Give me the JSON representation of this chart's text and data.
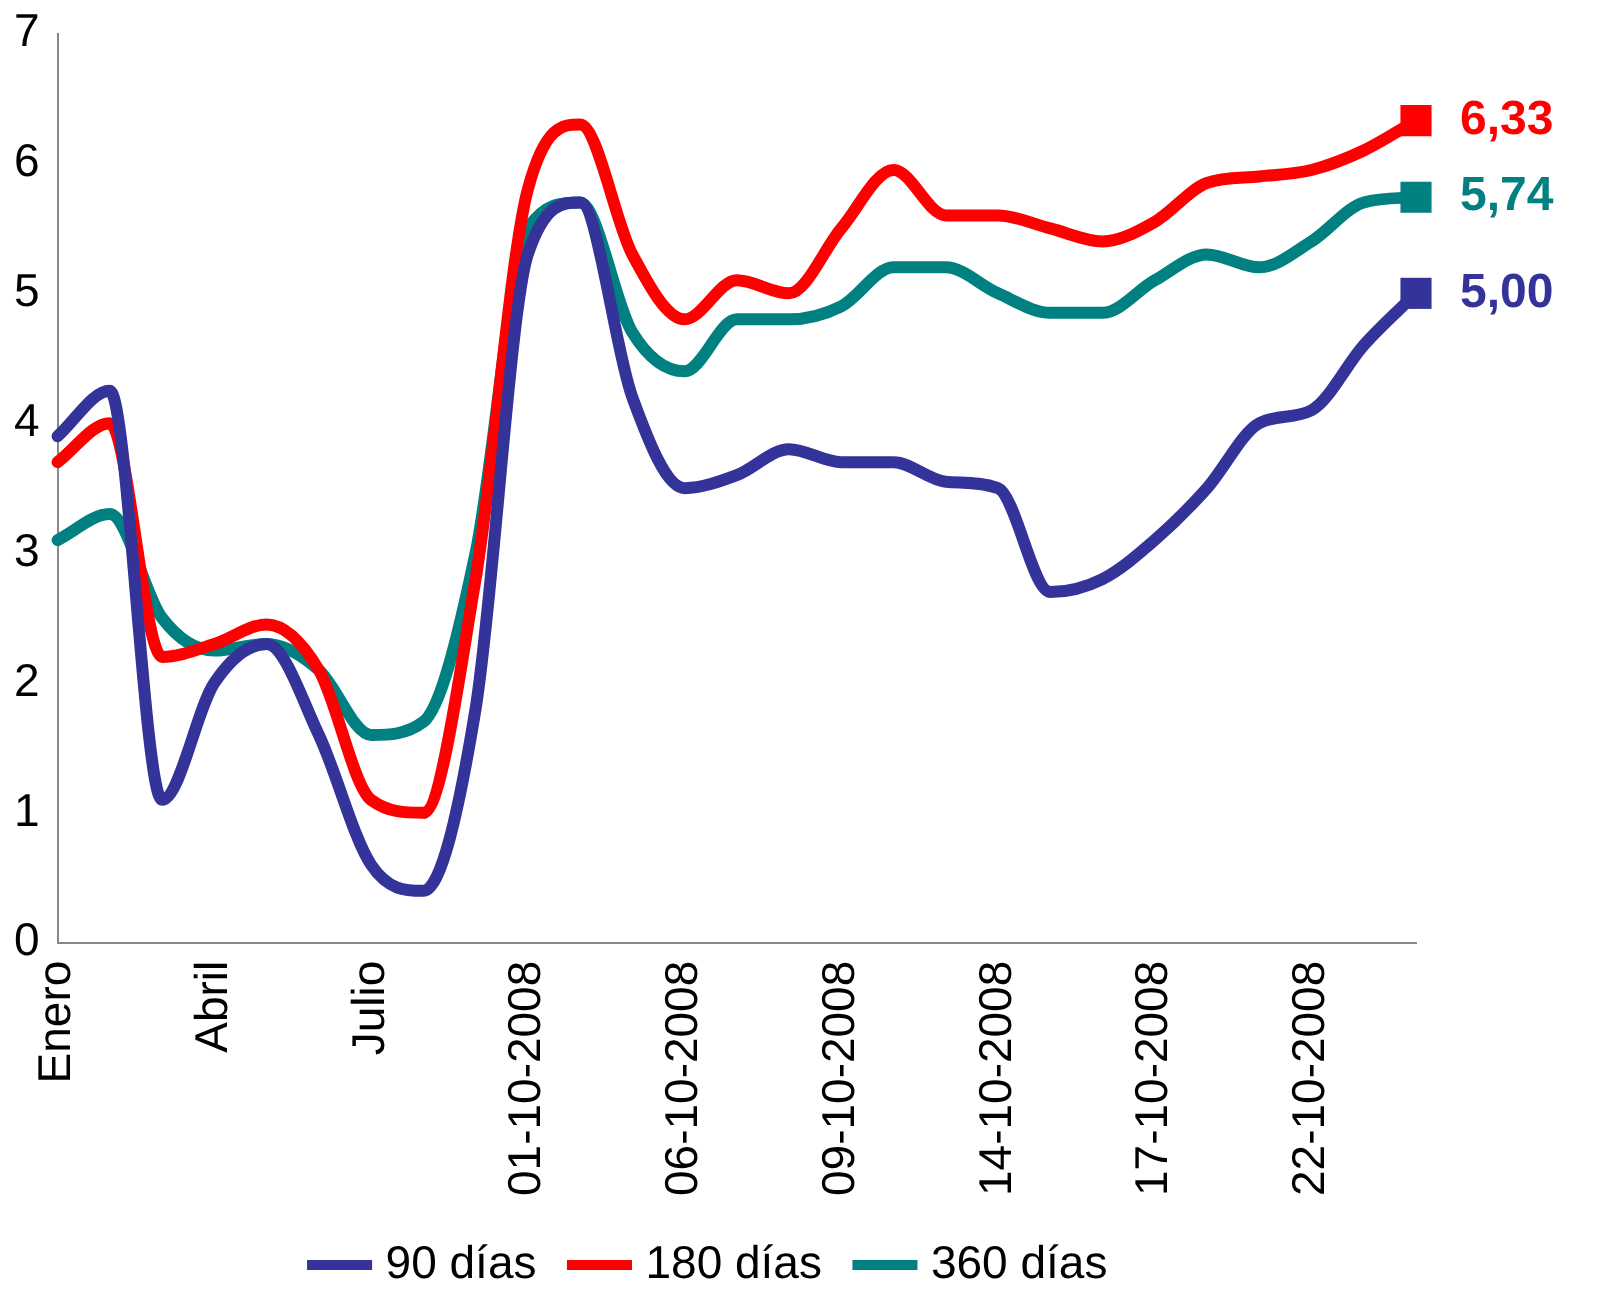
{
  "chart_data": {
    "type": "line",
    "categories": [
      "Enero",
      null,
      null,
      "Abril",
      null,
      null,
      "Julio",
      null,
      null,
      "01-10-2008",
      null,
      null,
      "06-10-2008",
      null,
      null,
      "09-10-2008",
      null,
      null,
      "14-10-2008",
      null,
      null,
      "17-10-2008",
      null,
      null,
      "22-10-2008",
      null,
      null
    ],
    "series": [
      {
        "name": "90 días",
        "color": "#333399",
        "values": [
          3.9,
          4.25,
          1.1,
          2.0,
          2.3,
          1.6,
          0.6,
          0.4,
          1.8,
          5.3,
          5.7,
          4.2,
          3.5,
          3.6,
          3.8,
          3.7,
          3.7,
          3.55,
          3.5,
          2.7,
          2.8,
          3.1,
          3.5,
          4.0,
          4.1,
          4.6,
          5.0
        ],
        "value_labels": [
          null,
          null,
          null,
          null,
          null,
          null,
          null,
          null,
          null,
          null,
          null,
          null,
          null,
          null,
          null,
          null,
          null,
          null,
          null,
          null,
          null,
          null,
          null,
          null,
          null,
          null,
          "5,00"
        ]
      },
      {
        "name": "180 días",
        "color": "#ff0000",
        "values": [
          3.7,
          4.0,
          2.2,
          2.3,
          2.45,
          2.1,
          1.1,
          1.0,
          2.8,
          5.8,
          6.3,
          5.3,
          4.8,
          5.1,
          5.0,
          5.5,
          5.95,
          5.6,
          5.6,
          5.5,
          5.4,
          5.55,
          5.85,
          5.9,
          5.95,
          6.1,
          6.33
        ],
        "value_labels": [
          null,
          null,
          null,
          null,
          null,
          null,
          null,
          null,
          null,
          null,
          null,
          null,
          null,
          null,
          null,
          null,
          null,
          null,
          null,
          null,
          null,
          null,
          null,
          null,
          null,
          null,
          "6,33"
        ]
      },
      {
        "name": "360 días",
        "color": "#008080",
        "values": [
          3.1,
          3.3,
          2.5,
          2.25,
          2.3,
          2.1,
          1.6,
          1.7,
          3.0,
          5.5,
          5.7,
          4.7,
          4.4,
          4.8,
          4.8,
          4.9,
          5.2,
          5.2,
          5.0,
          4.85,
          4.85,
          5.1,
          5.3,
          5.2,
          5.4,
          5.7,
          5.74
        ],
        "value_labels": [
          null,
          null,
          null,
          null,
          null,
          null,
          null,
          null,
          null,
          null,
          null,
          null,
          null,
          null,
          null,
          null,
          null,
          null,
          null,
          null,
          null,
          null,
          null,
          null,
          null,
          null,
          "5,74"
        ]
      }
    ],
    "ylim": [
      0,
      7
    ],
    "yticks": [
      0,
      1,
      2,
      3,
      4,
      5,
      6,
      7
    ],
    "grid": false,
    "legend": "bottom",
    "marker": "none",
    "line_style": "solid"
  }
}
